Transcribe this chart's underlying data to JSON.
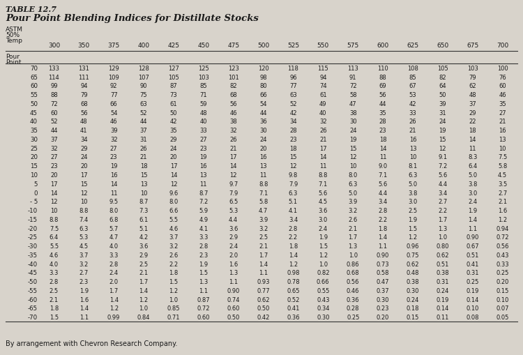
{
  "title_line1": "TABLE 12.7",
  "title_line2": "Pour Point Blending Indices for Distillate Stocks",
  "col_headers": [
    "300",
    "350",
    "375",
    "400",
    "425",
    "450",
    "475",
    "500",
    "525",
    "550",
    "575",
    "600",
    "625",
    "650",
    "675",
    "700"
  ],
  "row_labels": [
    "70",
    "65",
    "60",
    "55",
    "50",
    "45",
    "40",
    "35",
    "30",
    "25",
    "20",
    "15",
    "10",
    "5",
    "0",
    "- 5",
    "-10",
    "-15",
    "-20",
    "-25",
    "-30",
    "-35",
    "-40",
    "-45",
    "-50",
    "-55",
    "-60",
    "-65",
    "-70"
  ],
  "table_data": [
    [
      133,
      131,
      129,
      128,
      127,
      125,
      123,
      120,
      118,
      115,
      113,
      110,
      108,
      105,
      103,
      100
    ],
    [
      114,
      111,
      109,
      107,
      105,
      103,
      101,
      98,
      96,
      94,
      91,
      88,
      85,
      82,
      79,
      76
    ],
    [
      99,
      94,
      92,
      90,
      87,
      85,
      82,
      80,
      77,
      74,
      72,
      69,
      67,
      64,
      62,
      60
    ],
    [
      88,
      79,
      77,
      75,
      73,
      71,
      68,
      66,
      63,
      61,
      58,
      56,
      53,
      50,
      48,
      46
    ],
    [
      72,
      68,
      66,
      63,
      61,
      59,
      56,
      54,
      52,
      49,
      47,
      44,
      42,
      39,
      37,
      35
    ],
    [
      60,
      56,
      54,
      52,
      50,
      48,
      46,
      44,
      42,
      40,
      38,
      35,
      33,
      31,
      29,
      27
    ],
    [
      52,
      48,
      46,
      44,
      42,
      40,
      38,
      36,
      34,
      32,
      30,
      28,
      26,
      24,
      22,
      21
    ],
    [
      44,
      41,
      39,
      37,
      35,
      33,
      32,
      30,
      28,
      26,
      24,
      23,
      21,
      19,
      18,
      16
    ],
    [
      37,
      34,
      32,
      31,
      29,
      27,
      26,
      24,
      23,
      21,
      19,
      18,
      16,
      15,
      14,
      13
    ],
    [
      32,
      29,
      27,
      26,
      24,
      23,
      21,
      20,
      18,
      17,
      15,
      14,
      13,
      12,
      11,
      10
    ],
    [
      27,
      24,
      23,
      21,
      20,
      19,
      17,
      16,
      15,
      14,
      12,
      11,
      10,
      "9.1",
      "8.3",
      "7.5"
    ],
    [
      23,
      20,
      19,
      18,
      17,
      16,
      14,
      13,
      12,
      11,
      10,
      "9.0",
      "8.1",
      "7.2",
      "6.4",
      "5.8"
    ],
    [
      20,
      17,
      16,
      15,
      14,
      13,
      12,
      11,
      "9.8",
      "8.8",
      "8.0",
      "7.1",
      "6.3",
      "5.6",
      "5.0",
      "4.5"
    ],
    [
      17,
      15,
      14,
      13,
      12,
      11,
      "9.7",
      "8.8",
      "7.9",
      "7.1",
      "6.3",
      "5.6",
      "5.0",
      "4.4",
      "3.8",
      "3.5"
    ],
    [
      14,
      12,
      11,
      10,
      "9.6",
      "8.7",
      "7.9",
      "7.1",
      "6.3",
      "5.6",
      "5.0",
      "4.4",
      "3.8",
      "3.4",
      "3.0",
      "2.7"
    ],
    [
      12,
      10,
      "9.5",
      "8.7",
      "8.0",
      "7.2",
      "6.5",
      "5.8",
      "5.1",
      "4.5",
      "3.9",
      "3.4",
      "3.0",
      "2.7",
      "2.4",
      "2.1"
    ],
    [
      10,
      "8.8",
      "8.0",
      "7.3",
      "6.6",
      "5.9",
      "5.3",
      "4.7",
      "4.1",
      "3.6",
      "3.2",
      "2.8",
      "2.5",
      "2.2",
      "1.9",
      "1.6"
    ],
    [
      "8.8",
      "7.4",
      "6.8",
      "6.1",
      "5.5",
      "4.9",
      "4.4",
      "3.9",
      "3.4",
      "3.0",
      "2.6",
      "2.2",
      "1.9",
      "1.7",
      "1.4",
      "1.2"
    ],
    [
      "7.5",
      "6.3",
      "5.7",
      "5.1",
      "4.6",
      "4.1",
      "3.6",
      "3.2",
      "2.8",
      "2.4",
      "2.1",
      "1.8",
      "1.5",
      "1.3",
      "1.1",
      "0.94"
    ],
    [
      "6.4",
      "5.3",
      "4.7",
      "4.2",
      "3.7",
      "3.3",
      "2.9",
      "2.5",
      "2.2",
      "1.9",
      "1.7",
      "1.4",
      "1.2",
      "1.0",
      "0.90",
      "0.72"
    ],
    [
      "5.5",
      "4.5",
      "4.0",
      "3.6",
      "3.2",
      "2.8",
      "2.4",
      "2.1",
      "1.8",
      "1.5",
      "1.3",
      "1.1",
      "0.96",
      "0.80",
      "0.67",
      "0.56"
    ],
    [
      "4.6",
      "3.7",
      "3.3",
      "2.9",
      "2.6",
      "2.3",
      "2.0",
      "1.7",
      "1.4",
      "1.2",
      "1.0",
      "0.90",
      "0.75",
      "0.62",
      "0.51",
      "0.43"
    ],
    [
      "4.0",
      "3.2",
      "2.8",
      "2.5",
      "2.2",
      "1.9",
      "1.6",
      "1.4",
      "1.2",
      "1.0",
      "0.86",
      "0.73",
      "0.62",
      "0.51",
      "0.41",
      "0.33"
    ],
    [
      "3.3",
      "2.7",
      "2.4",
      "2.1",
      "1.8",
      "1.5",
      "1.3",
      "1.1",
      "0.98",
      "0.82",
      "0.68",
      "0.58",
      "0.48",
      "0.38",
      "0.31",
      "0.25"
    ],
    [
      "2.8",
      "2.3",
      "2.0",
      "1.7",
      "1.5",
      "1.3",
      "1.1",
      "0.93",
      "0.78",
      "0.66",
      "0.56",
      "0.47",
      "0.38",
      "0.31",
      "0.25",
      "0.20"
    ],
    [
      "2.5",
      "1.9",
      "1.7",
      "1.4",
      "1.2",
      "1.1",
      "0.90",
      "0.77",
      "0.65",
      "0.55",
      "0.46",
      "0.37",
      "0.30",
      "0.24",
      "0.19",
      "0.15"
    ],
    [
      "2.1",
      "1.6",
      "1.4",
      "1.2",
      "1.0",
      "0.87",
      "0.74",
      "0.62",
      "0.52",
      "0.43",
      "0.36",
      "0.30",
      "0.24",
      "0.19",
      "0.14",
      "0.10"
    ],
    [
      "1.8",
      "1.4",
      "1.2",
      "1.0",
      "0.85",
      "0.72",
      "0.60",
      "0.50",
      "0.41",
      "0.34",
      "0.28",
      "0.23",
      "0.18",
      "0.14",
      "0.10",
      "0.07"
    ],
    [
      "1.5",
      "1.1",
      "0.99",
      "0.84",
      "0.71",
      "0.60",
      "0.50",
      "0.42",
      "0.36",
      "0.30",
      "0.25",
      "0.20",
      "0.15",
      "0.11",
      "0.08",
      "0.05"
    ]
  ],
  "footnote": "By arrangement with Chevron Research Company.",
  "bg_color": "#d8d3cb",
  "text_color": "#1a1a1a",
  "border_color": "#333333"
}
